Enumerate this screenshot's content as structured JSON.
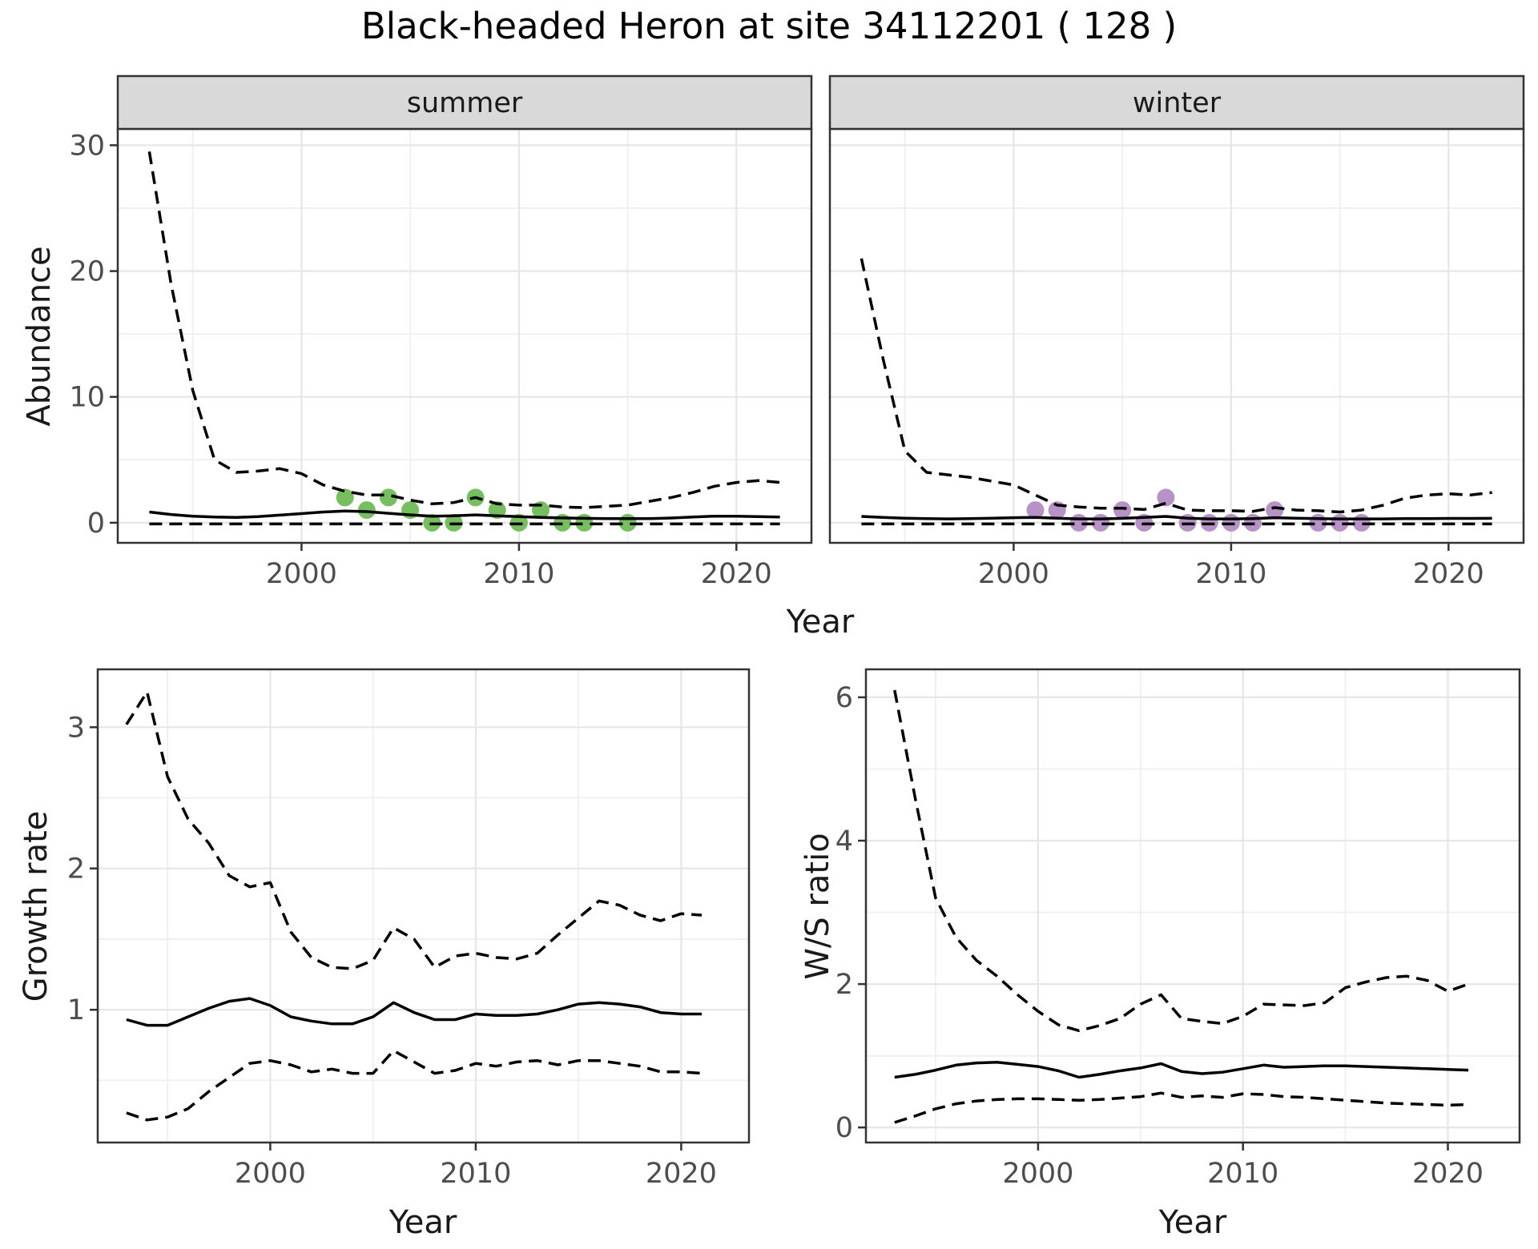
{
  "title": "Black-headed Heron at site 34112201 ( 128 )",
  "theme": {
    "background": "#FFFFFF",
    "panel_border": "#333333",
    "strip_bg": "#D9D9D9",
    "grid_major": "#E6E6E6",
    "grid_minor": "#F0F0F0",
    "axis_text_color": "#4D4D4D",
    "text_color": "#1A1A1A",
    "line_color": "#000000",
    "summer_point_color": "#76BE60",
    "winter_point_color": "#B692C7"
  },
  "chart_data": [
    {
      "type": "line",
      "facet": "summer",
      "xlabel": "Year",
      "ylabel": "Abundance",
      "legend_position": "none",
      "grid": true,
      "xlim": [
        1991.55,
        2023.45
      ],
      "ylim": [
        -1.6,
        31.3
      ],
      "x_ticks": [
        2000,
        2010,
        2020
      ],
      "x_minor": [
        1995,
        2005,
        2015
      ],
      "y_ticks": [
        0,
        10,
        20,
        30
      ],
      "y_minor": [
        5,
        15,
        25
      ],
      "years": [
        1993,
        1994,
        1995,
        1996,
        1997,
        1998,
        1999,
        2000,
        2001,
        2002,
        2003,
        2004,
        2005,
        2006,
        2007,
        2008,
        2009,
        2010,
        2011,
        2012,
        2013,
        2014,
        2015,
        2016,
        2017,
        2018,
        2019,
        2020,
        2021,
        2022
      ],
      "upper_ci": [
        29.5,
        19,
        10.5,
        5.0,
        4.0,
        4.1,
        4.3,
        3.9,
        3.0,
        2.5,
        2.2,
        2.2,
        1.8,
        1.5,
        1.6,
        2.0,
        1.5,
        1.4,
        1.4,
        1.25,
        1.2,
        1.3,
        1.4,
        1.7,
        2.0,
        2.4,
        2.9,
        3.2,
        3.35,
        3.2
      ],
      "mean": [
        0.85,
        0.65,
        0.52,
        0.45,
        0.42,
        0.48,
        0.6,
        0.72,
        0.85,
        0.93,
        0.88,
        0.75,
        0.62,
        0.52,
        0.55,
        0.62,
        0.55,
        0.48,
        0.42,
        0.38,
        0.35,
        0.33,
        0.32,
        0.33,
        0.37,
        0.45,
        0.52,
        0.52,
        0.48,
        0.45
      ],
      "lower_ci": [
        -0.1,
        -0.1,
        -0.1,
        -0.1,
        -0.1,
        -0.1,
        -0.1,
        -0.1,
        -0.1,
        -0.1,
        -0.1,
        -0.1,
        -0.1,
        -0.1,
        -0.1,
        -0.1,
        -0.1,
        -0.1,
        -0.1,
        -0.1,
        -0.1,
        -0.1,
        -0.1,
        -0.1,
        -0.1,
        -0.1,
        -0.1,
        -0.1,
        -0.1,
        -0.1
      ],
      "observations": {
        "years": [
          2002,
          2003,
          2004,
          2005,
          2006,
          2007,
          2008,
          2009,
          2010,
          2011,
          2012,
          2013,
          2015
        ],
        "values": [
          2,
          1,
          2,
          1,
          0,
          0,
          2,
          1,
          0,
          1,
          0,
          0,
          0
        ]
      },
      "point_color": "#76BE60"
    },
    {
      "type": "line",
      "facet": "winter",
      "xlabel": "Year",
      "ylabel": "Abundance",
      "legend_position": "none",
      "grid": true,
      "xlim": [
        1991.55,
        2023.45
      ],
      "ylim": [
        -1.6,
        31.3
      ],
      "x_ticks": [
        2000,
        2010,
        2020
      ],
      "x_minor": [
        1995,
        2005,
        2015
      ],
      "y_ticks": [
        0,
        10,
        20,
        30
      ],
      "y_minor": [
        5,
        15,
        25
      ],
      "years": [
        1993,
        1994,
        1995,
        1996,
        1997,
        1998,
        1999,
        2000,
        2001,
        2002,
        2003,
        2004,
        2005,
        2006,
        2007,
        2008,
        2009,
        2010,
        2011,
        2012,
        2013,
        2014,
        2015,
        2016,
        2017,
        2018,
        2019,
        2020,
        2021,
        2022
      ],
      "upper_ci": [
        21,
        13,
        5.7,
        4.0,
        3.8,
        3.6,
        3.3,
        3.0,
        2.2,
        1.4,
        1.25,
        1.15,
        1.15,
        1.05,
        1.55,
        1.0,
        0.95,
        0.95,
        0.9,
        1.2,
        1.0,
        0.95,
        0.85,
        1.0,
        1.4,
        1.95,
        2.2,
        2.3,
        2.2,
        2.4
      ],
      "mean": [
        0.5,
        0.42,
        0.36,
        0.32,
        0.3,
        0.32,
        0.36,
        0.4,
        0.42,
        0.36,
        0.3,
        0.3,
        0.35,
        0.42,
        0.5,
        0.36,
        0.3,
        0.3,
        0.32,
        0.4,
        0.36,
        0.32,
        0.3,
        0.3,
        0.3,
        0.32,
        0.33,
        0.34,
        0.34,
        0.35
      ],
      "lower_ci": [
        -0.1,
        -0.1,
        -0.1,
        -0.1,
        -0.1,
        -0.1,
        -0.1,
        -0.1,
        -0.1,
        -0.1,
        -0.1,
        -0.1,
        -0.1,
        -0.1,
        -0.1,
        -0.1,
        -0.1,
        -0.1,
        -0.1,
        -0.1,
        -0.1,
        -0.1,
        -0.1,
        -0.1,
        -0.1,
        -0.1,
        -0.1,
        -0.1,
        -0.1,
        -0.1
      ],
      "observations": {
        "years": [
          2001,
          2002,
          2003,
          2004,
          2005,
          2006,
          2007,
          2008,
          2009,
          2010,
          2011,
          2012,
          2014,
          2015,
          2016
        ],
        "values": [
          1,
          1,
          0,
          0,
          1,
          0,
          2,
          0,
          0,
          0,
          0,
          1,
          0,
          0,
          0
        ]
      },
      "point_color": "#B692C7"
    },
    {
      "type": "line",
      "facet": "",
      "xlabel": "Year",
      "ylabel": "Growth rate",
      "legend_position": "none",
      "grid": true,
      "xlim": [
        1991.6,
        2023.3
      ],
      "ylim": [
        0.06,
        3.41
      ],
      "x_ticks": [
        2000,
        2010,
        2020
      ],
      "x_minor": [
        1995,
        2005,
        2015
      ],
      "y_ticks": [
        1,
        2,
        3
      ],
      "y_minor": [
        0.5,
        1.5,
        2.5
      ],
      "years": [
        1993,
        1994,
        1995,
        1996,
        1997,
        1998,
        1999,
        2000,
        2001,
        2002,
        2003,
        2004,
        2005,
        2006,
        2007,
        2008,
        2009,
        2010,
        2011,
        2012,
        2013,
        2014,
        2015,
        2016,
        2017,
        2018,
        2019,
        2020,
        2021
      ],
      "upper_ci": [
        3.02,
        3.25,
        2.65,
        2.35,
        2.18,
        1.95,
        1.87,
        1.9,
        1.55,
        1.37,
        1.3,
        1.29,
        1.35,
        1.58,
        1.5,
        1.3,
        1.38,
        1.4,
        1.37,
        1.36,
        1.4,
        1.53,
        1.65,
        1.77,
        1.74,
        1.67,
        1.63,
        1.68,
        1.67
      ],
      "mean": [
        0.93,
        0.89,
        0.89,
        0.95,
        1.01,
        1.06,
        1.08,
        1.03,
        0.95,
        0.92,
        0.9,
        0.9,
        0.95,
        1.05,
        0.98,
        0.93,
        0.93,
        0.97,
        0.96,
        0.96,
        0.97,
        1.0,
        1.04,
        1.05,
        1.04,
        1.02,
        0.98,
        0.97,
        0.97
      ],
      "lower_ci": [
        0.27,
        0.22,
        0.24,
        0.3,
        0.42,
        0.52,
        0.62,
        0.64,
        0.61,
        0.56,
        0.58,
        0.55,
        0.55,
        0.71,
        0.63,
        0.55,
        0.57,
        0.62,
        0.6,
        0.63,
        0.64,
        0.61,
        0.64,
        0.64,
        0.62,
        0.6,
        0.56,
        0.56,
        0.55
      ]
    },
    {
      "type": "line",
      "facet": "",
      "xlabel": "Year",
      "ylabel": "W/S ratio",
      "legend_position": "none",
      "grid": true,
      "xlim": [
        1991.6,
        2023.5
      ],
      "ylim": [
        -0.21,
        6.39
      ],
      "x_ticks": [
        2000,
        2010,
        2020
      ],
      "x_minor": [
        1995,
        2005,
        2015
      ],
      "y_ticks": [
        0,
        2,
        4,
        6
      ],
      "y_minor": [
        1,
        3,
        5
      ],
      "years": [
        1993,
        1994,
        1995,
        1996,
        1997,
        1998,
        1999,
        2000,
        2001,
        2002,
        2003,
        2004,
        2005,
        2006,
        2007,
        2008,
        2009,
        2010,
        2011,
        2012,
        2013,
        2014,
        2015,
        2016,
        2017,
        2018,
        2019,
        2020,
        2021
      ],
      "upper_ci": [
        6.1,
        4.6,
        3.2,
        2.65,
        2.33,
        2.11,
        1.85,
        1.62,
        1.43,
        1.35,
        1.42,
        1.52,
        1.72,
        1.85,
        1.52,
        1.48,
        1.45,
        1.55,
        1.72,
        1.71,
        1.7,
        1.74,
        1.95,
        2.03,
        2.09,
        2.11,
        2.05,
        1.9,
        2.0
      ],
      "mean": [
        0.7,
        0.74,
        0.8,
        0.87,
        0.9,
        0.91,
        0.88,
        0.85,
        0.79,
        0.7,
        0.74,
        0.79,
        0.83,
        0.89,
        0.78,
        0.75,
        0.77,
        0.82,
        0.87,
        0.84,
        0.85,
        0.86,
        0.86,
        0.85,
        0.84,
        0.83,
        0.82,
        0.81,
        0.8
      ],
      "lower_ci": [
        0.07,
        0.16,
        0.26,
        0.33,
        0.37,
        0.39,
        0.4,
        0.4,
        0.39,
        0.38,
        0.39,
        0.41,
        0.43,
        0.48,
        0.42,
        0.44,
        0.42,
        0.47,
        0.46,
        0.43,
        0.42,
        0.4,
        0.38,
        0.36,
        0.34,
        0.33,
        0.32,
        0.31,
        0.32
      ]
    }
  ]
}
